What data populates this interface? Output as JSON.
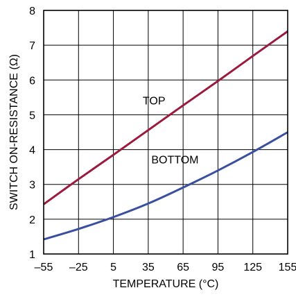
{
  "chart_data": {
    "type": "line",
    "xlabel": "TEMPERATURE (°C)",
    "ylabel": "SWITCH ON-RESISTANCE (Ω)",
    "xlim": [
      -55,
      155
    ],
    "ylim": [
      1,
      8
    ],
    "x_ticks": [
      -55,
      -25,
      5,
      35,
      65,
      95,
      125,
      155
    ],
    "x_tick_labels": [
      "–55",
      "–25",
      "5",
      "35",
      "65",
      "95",
      "125",
      "155"
    ],
    "y_ticks": [
      1,
      2,
      3,
      4,
      5,
      6,
      7,
      8
    ],
    "y_tick_labels": [
      "1",
      "2",
      "3",
      "4",
      "5",
      "6",
      "7",
      "8"
    ],
    "grid": true,
    "legend": "none",
    "series": [
      {
        "name": "TOP",
        "color": "#9b1b3f",
        "x": [
          -55,
          -25,
          5,
          35,
          65,
          95,
          125,
          155
        ],
        "y": [
          2.43,
          3.15,
          3.85,
          4.56,
          5.27,
          5.97,
          6.69,
          7.4
        ]
      },
      {
        "name": "BOTTOM",
        "color": "#3a4fa0",
        "x": [
          -55,
          -25,
          5,
          35,
          65,
          95,
          125,
          155
        ],
        "y": [
          1.42,
          1.72,
          2.06,
          2.45,
          2.91,
          3.4,
          3.93,
          4.5
        ]
      }
    ],
    "annotations": [
      {
        "text": "TOP",
        "x": 40,
        "y": 5.3
      },
      {
        "text": "BOTTOM",
        "x": 58,
        "y": 3.6
      }
    ]
  }
}
